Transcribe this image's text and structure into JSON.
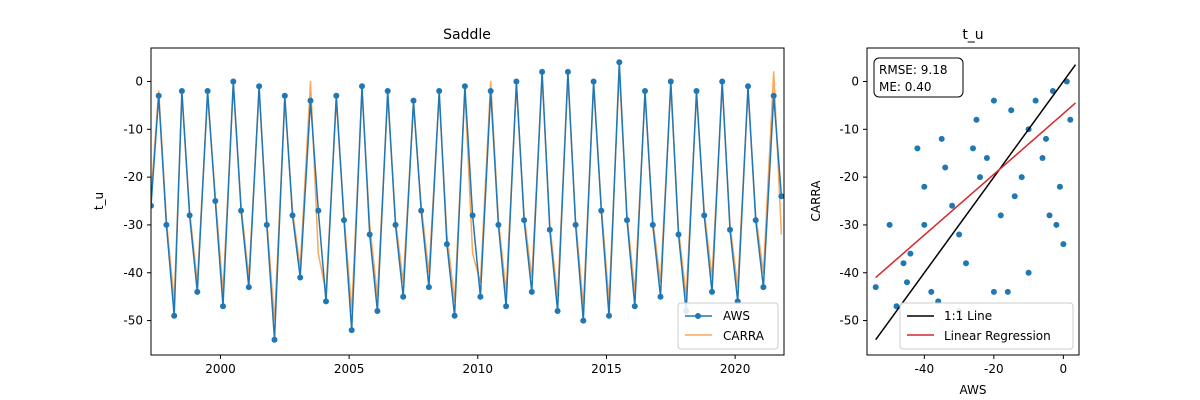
{
  "chart_data": [
    {
      "type": "line",
      "title": "Saddle",
      "xlabel": "",
      "ylabel": "t_u",
      "xlim": [
        1997.3,
        2021.9
      ],
      "ylim": [
        -57.2,
        7.0
      ],
      "x_ticks": [
        2000,
        2005,
        2010,
        2015,
        2020
      ],
      "y_ticks": [
        0,
        -10,
        -20,
        -30,
        -40,
        -50
      ],
      "grid": false,
      "legend_position": "lower right",
      "series": [
        {
          "name": "AWS",
          "color": "#1f77b4",
          "marker": "circle",
          "x": [
            1997.3,
            1997.6,
            1997.9,
            1998.2,
            1998.5,
            1998.8,
            1999.1,
            1999.5,
            1999.8,
            2000.1,
            2000.5,
            2000.8,
            2001.1,
            2001.5,
            2001.8,
            2002.1,
            2002.5,
            2002.8,
            2003.1,
            2003.5,
            2003.8,
            2004.1,
            2004.5,
            2004.8,
            2005.1,
            2005.5,
            2005.8,
            2006.1,
            2006.5,
            2006.8,
            2007.1,
            2007.5,
            2007.8,
            2008.1,
            2008.5,
            2008.8,
            2009.1,
            2009.5,
            2009.8,
            2010.1,
            2010.5,
            2010.8,
            2011.1,
            2011.5,
            2011.8,
            2012.1,
            2012.5,
            2012.8,
            2013.1,
            2013.5,
            2013.8,
            2014.1,
            2014.5,
            2014.8,
            2015.1,
            2015.5,
            2015.8,
            2016.1,
            2016.5,
            2016.8,
            2017.1,
            2017.5,
            2017.8,
            2018.1,
            2018.5,
            2018.8,
            2019.1,
            2019.5,
            2019.8,
            2020.1,
            2020.5,
            2020.8,
            2021.1,
            2021.5,
            2021.8
          ],
          "values": [
            -26,
            -3,
            -30,
            -49,
            -2,
            -28,
            -44,
            -2,
            -25,
            -47,
            0,
            -27,
            -43,
            -1,
            -30,
            -54,
            -3,
            -28,
            -41,
            -4,
            -27,
            -46,
            -3,
            -29,
            -52,
            -1,
            -32,
            -48,
            -2,
            -30,
            -45,
            -4,
            -27,
            -43,
            -2,
            -34,
            -49,
            -1,
            -28,
            -45,
            -2,
            -30,
            -47,
            0,
            -29,
            -44,
            2,
            -31,
            -48,
            2,
            -30,
            -50,
            0,
            -27,
            -49,
            4,
            -29,
            -47,
            -2,
            -30,
            -45,
            0,
            -32,
            -48,
            -2,
            -28,
            -44,
            0,
            -31,
            -46,
            -1,
            -29,
            -43,
            -3,
            -24
          ]
        },
        {
          "name": "CARRA",
          "color": "#ff7f0e",
          "marker": "none",
          "x": [
            1997.3,
            1997.6,
            1997.9,
            1998.2,
            1998.5,
            1998.8,
            1999.1,
            1999.5,
            1999.8,
            2000.1,
            2000.5,
            2000.8,
            2001.1,
            2001.5,
            2001.8,
            2002.1,
            2002.5,
            2002.8,
            2003.1,
            2003.5,
            2003.8,
            2004.1,
            2004.5,
            2004.8,
            2005.1,
            2005.5,
            2005.8,
            2006.1,
            2006.5,
            2006.8,
            2007.1,
            2007.5,
            2007.8,
            2008.1,
            2008.5,
            2008.8,
            2009.1,
            2009.5,
            2009.8,
            2010.1,
            2010.5,
            2010.8,
            2011.1,
            2011.5,
            2011.8,
            2012.1,
            2012.5,
            2012.8,
            2013.1,
            2013.5,
            2013.8,
            2014.1,
            2014.5,
            2014.8,
            2015.1,
            2015.5,
            2015.8,
            2016.1,
            2016.5,
            2016.8,
            2017.1,
            2017.5,
            2017.8,
            2018.1,
            2018.5,
            2018.8,
            2019.1,
            2019.5,
            2019.8,
            2020.1,
            2020.5,
            2020.8,
            2021.1,
            2021.5,
            2021.8
          ],
          "values": [
            -24,
            -2,
            -29,
            -46,
            -3,
            -27,
            -42,
            -3,
            -24,
            -44,
            -1,
            -26,
            -41,
            -2,
            -29,
            -50,
            -4,
            -27,
            -39,
            0,
            -36,
            -44,
            -4,
            -28,
            -48,
            -2,
            -30,
            -45,
            -3,
            -29,
            -42,
            -5,
            -26,
            -40,
            -3,
            -32,
            -46,
            -2,
            -36,
            -42,
            0,
            -29,
            -44,
            -1,
            -28,
            -41,
            1,
            -30,
            -45,
            1,
            -29,
            -47,
            -1,
            -26,
            -46,
            2,
            -28,
            -44,
            -3,
            -29,
            -42,
            -1,
            -31,
            -45,
            -3,
            -27,
            -41,
            -1,
            -30,
            -43,
            -2,
            -28,
            -40,
            2,
            -32
          ]
        }
      ]
    },
    {
      "type": "scatter",
      "title": "t_u",
      "xlabel": "AWS",
      "ylabel": "CARRA",
      "xlim": [
        -56.5,
        4.5
      ],
      "ylim": [
        -57.2,
        7.0
      ],
      "x_ticks": [
        -40,
        -20,
        0
      ],
      "y_ticks": [
        0,
        -10,
        -20,
        -30,
        -40,
        -50
      ],
      "grid": false,
      "annotation": [
        "RMSE: 9.18",
        "ME: 0.40"
      ],
      "legend_position": "lower right",
      "scatter_color": "#1f77b4",
      "scatter_cloud": {
        "x": [
          -54,
          -50,
          -48,
          -45,
          -42,
          -40,
          -38,
          -35,
          -32,
          -30,
          -28,
          -25,
          -22,
          -20,
          -18,
          -15,
          -12,
          -10,
          -8,
          -5,
          -3,
          -1,
          0,
          1,
          2,
          -2,
          -6,
          -14,
          -24,
          -36,
          -44,
          -30,
          -20,
          -10,
          -40,
          -46,
          -26,
          -16,
          -4,
          -34
        ],
        "values": [
          -43,
          -30,
          -47,
          -42,
          -14,
          -30,
          -44,
          -12,
          -26,
          -48,
          -38,
          -8,
          -16,
          -44,
          -28,
          -6,
          -20,
          -40,
          -4,
          -12,
          -2,
          -22,
          -34,
          0,
          -8,
          -30,
          -16,
          -24,
          -20,
          -46,
          -36,
          -32,
          -4,
          -10,
          -22,
          -38,
          -14,
          -44,
          -28,
          -18
        ]
      },
      "lines": [
        {
          "name": "1:1 Line",
          "color": "#000000",
          "x": [
            -54,
            3.5
          ],
          "values": [
            -54,
            3.5
          ]
        },
        {
          "name": "Linear Regression",
          "color": "#d62728",
          "x": [
            -54,
            3.5
          ],
          "values": [
            -41,
            -4.5
          ]
        }
      ]
    }
  ]
}
